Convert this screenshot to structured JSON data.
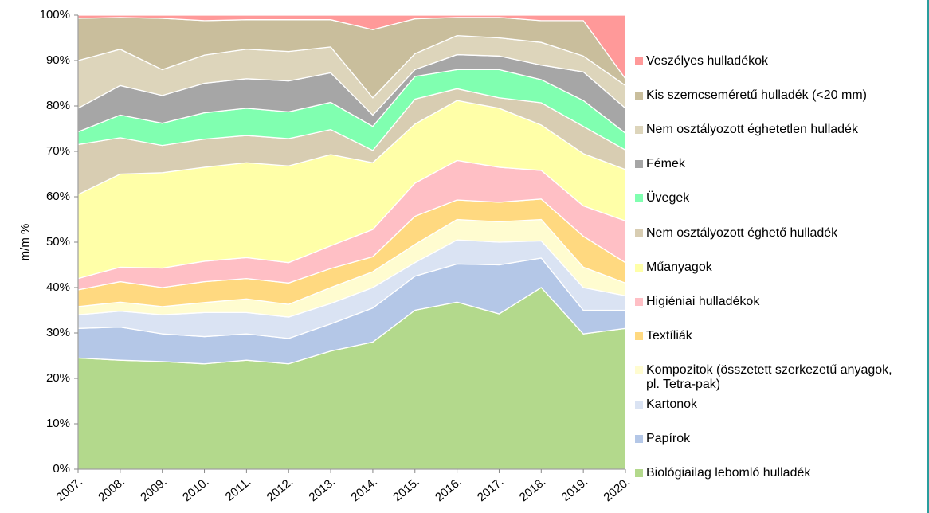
{
  "chart_data": {
    "type": "stacked_area",
    "y_label": "m/m %",
    "categories": [
      "2007.",
      "2008.",
      "2009.",
      "2010.",
      "2011.",
      "2012.",
      "2013.",
      "2014.",
      "2015.",
      "2016.",
      "2017.",
      "2018.",
      "2019.",
      "2020."
    ],
    "ylim": [
      0,
      100
    ],
    "yticks": [
      {
        "value": 0,
        "label": "0%"
      },
      {
        "value": 10,
        "label": "10%"
      },
      {
        "value": 20,
        "label": "20%"
      },
      {
        "value": 30,
        "label": "30%"
      },
      {
        "value": 40,
        "label": "40%"
      },
      {
        "value": 50,
        "label": "50%"
      },
      {
        "value": 60,
        "label": "60%"
      },
      {
        "value": 70,
        "label": "70%"
      },
      {
        "value": 80,
        "label": "80%"
      },
      {
        "value": 90,
        "label": "90%"
      },
      {
        "value": 100,
        "label": "100%"
      }
    ],
    "legend": "right",
    "series": [
      {
        "name": "Biológiailag lebomló hulladék",
        "color": "#b3d98c",
        "values": [
          24.5,
          24,
          23.7,
          23.2,
          24,
          23.2,
          26,
          28,
          35,
          36.8,
          34.2,
          40,
          29.8,
          31
        ]
      },
      {
        "name": "Papírok",
        "color": "#b4c7e7",
        "values": [
          6.5,
          7.3,
          6.1,
          6.0,
          5.8,
          5.6,
          6.0,
          7.5,
          7.5,
          8.4,
          10.8,
          6.5,
          5.2,
          4.0
        ]
      },
      {
        "name": "Kartonok",
        "color": "#dae3f3",
        "values": [
          3.0,
          3.5,
          4.2,
          5.3,
          4.7,
          4.7,
          4.5,
          4.5,
          3.0,
          5.3,
          5.0,
          3.8,
          5.0,
          3.2
        ]
      },
      {
        "name": "Kompozitok (összetett szerkezetű anyagok, pl. Tetra-pak)",
        "color": "#fffcd0",
        "values": [
          1.8,
          2.0,
          1.8,
          2.2,
          3.0,
          2.8,
          3.5,
          3.5,
          4.0,
          4.5,
          4.5,
          4.7,
          4.5,
          2.8
        ]
      },
      {
        "name": "Textíliák",
        "color": "#ffd980",
        "values": [
          3.7,
          4.5,
          4.2,
          4.6,
          4.5,
          4.7,
          4.2,
          3.3,
          6.2,
          4.3,
          4.3,
          4.5,
          6.8,
          4.5
        ]
      },
      {
        "name": "Higiéniai hulladékok",
        "color": "#ffbfc5",
        "values": [
          2.5,
          3.2,
          4.3,
          4.5,
          4.6,
          4.5,
          5.0,
          6.0,
          7.3,
          8.7,
          7.7,
          6.3,
          6.7,
          9.2
        ]
      },
      {
        "name": "Műanyagok",
        "color": "#ffffa8",
        "values": [
          18.5,
          20.5,
          21.0,
          20.7,
          20.9,
          21.3,
          20.1,
          14.7,
          13.0,
          13.2,
          13.0,
          10.0,
          11.5,
          11.3
        ]
      },
      {
        "name": "Nem osztályozott éghető hulladék",
        "color": "#d8cdb2",
        "values": [
          11.0,
          8.0,
          6.0,
          6.2,
          6.0,
          6.0,
          5.5,
          2.7,
          5.5,
          2.6,
          2.3,
          4.9,
          6.0,
          4.3
        ]
      },
      {
        "name": "Üvegek",
        "color": "#80ffb0",
        "values": [
          2.8,
          5.0,
          4.9,
          5.8,
          6.0,
          5.9,
          6.0,
          5.3,
          5.0,
          4.2,
          6.2,
          5.1,
          5.7,
          3.7
        ]
      },
      {
        "name": "Fémek",
        "color": "#a6a6a6",
        "values": [
          5.2,
          6.5,
          6.1,
          6.5,
          6.5,
          6.8,
          6.5,
          2.5,
          1.5,
          3.3,
          3.0,
          3.2,
          6.3,
          5.5
        ]
      },
      {
        "name": "Nem osztályozott éghetetlen hulladék",
        "color": "#ddd5bb",
        "values": [
          10.5,
          8.0,
          5.7,
          6.2,
          6.5,
          6.5,
          5.7,
          3.8,
          3.5,
          4.2,
          4.0,
          5.0,
          3.5,
          5.0
        ]
      },
      {
        "name": "Kis szemcseméretű hulladék (<20 mm)",
        "color": "#c9be9c",
        "values": [
          9.3,
          7.0,
          11.3,
          7.6,
          6.5,
          7.0,
          6.0,
          15.0,
          7.7,
          4.0,
          4.5,
          4.8,
          7.8,
          1.5
        ]
      },
      {
        "name": "Veszélyes hulladékok",
        "color": "#ff9999",
        "values": [
          0.7,
          0.5,
          0.7,
          1.2,
          1.0,
          1.0,
          1.0,
          3.2,
          0.8,
          0.5,
          0.5,
          1.2,
          1.2,
          14.0
        ]
      }
    ]
  }
}
